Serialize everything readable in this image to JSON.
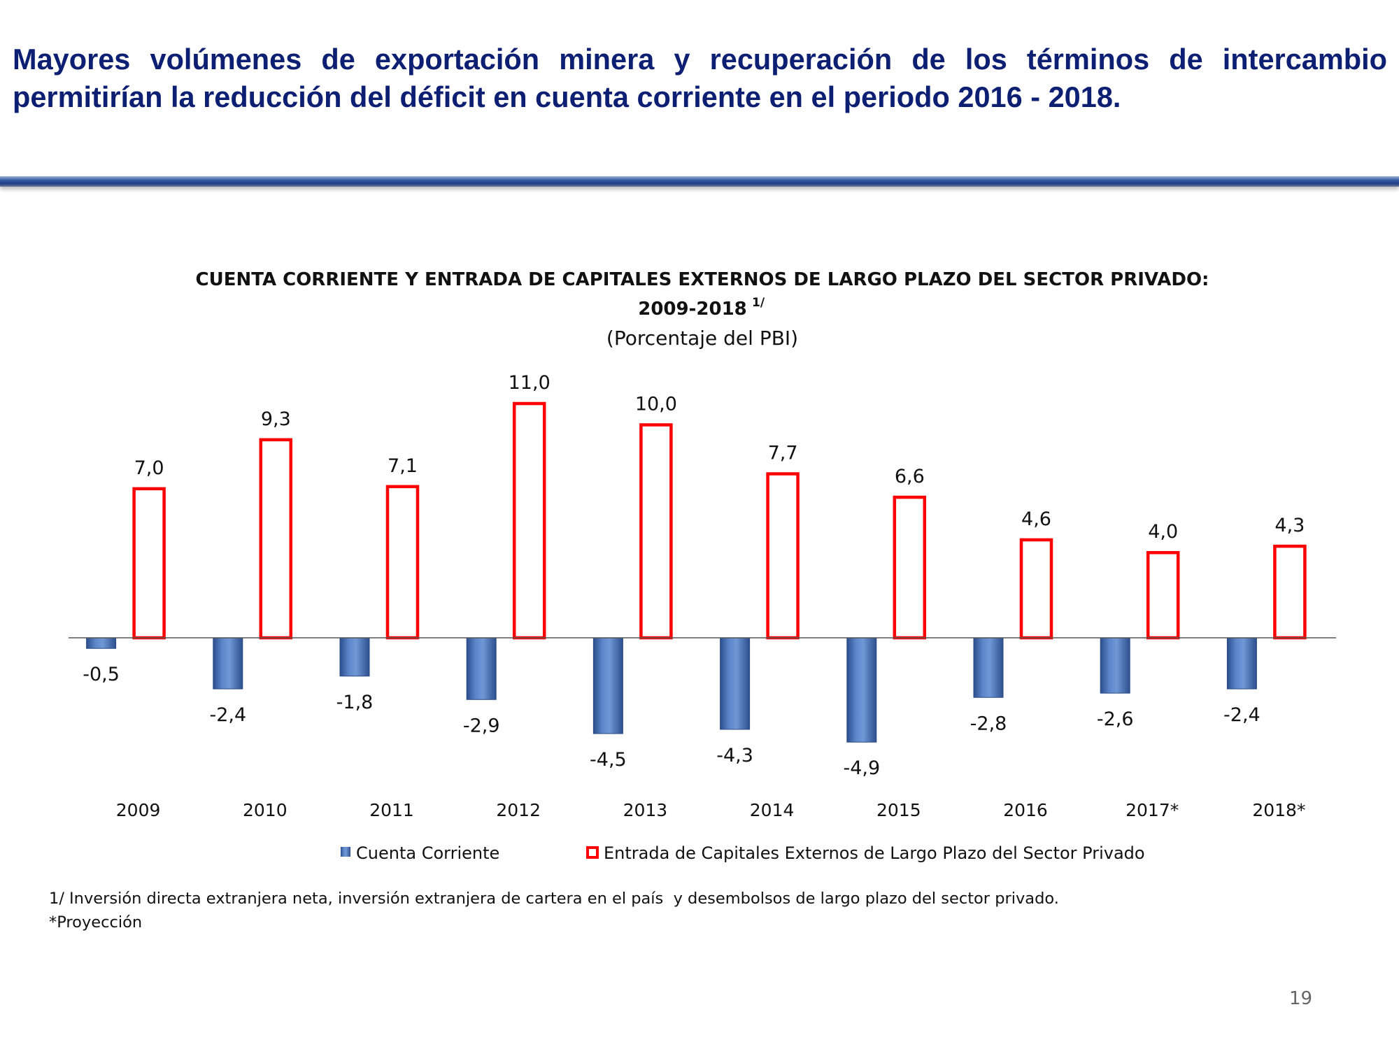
{
  "slide": {
    "heading_line1": "Mayores volúmenes de exportación minera y recuperación de los términos de intercambio",
    "heading_line2": "permitirían la reducción del déficit en cuenta corriente en el periodo 2016 - 2018.",
    "page_number": "19"
  },
  "chart_data": {
    "type": "bar",
    "title_line1": "CUENTA CORRIENTE Y ENTRADA DE CAPITALES EXTERNOS DE LARGO PLAZO DEL SECTOR PRIVADO:",
    "title_line2": "2009-2018",
    "title_superscript": "1/",
    "subtitle": "(Porcentaje del PBI)",
    "categories": [
      "2009",
      "2010",
      "2011",
      "2012",
      "2013",
      "2014",
      "2015",
      "2016",
      "2017*",
      "2018*"
    ],
    "series": [
      {
        "name": "Cuenta Corriente",
        "values": [
          -0.5,
          -2.4,
          -1.8,
          -2.9,
          -4.5,
          -4.3,
          -4.9,
          -2.8,
          -2.6,
          -2.4
        ],
        "labels": [
          "-0,5",
          "-2,4",
          "-1,8",
          "-2,9",
          "-4,5",
          "-4,3",
          "-4,9",
          "-2,8",
          "-2,6",
          "-2,4"
        ],
        "color": "#4a72b5",
        "style": "filled-gradient"
      },
      {
        "name": "Entrada de Capitales Externos de Largo Plazo del Sector Privado",
        "values": [
          7.0,
          9.3,
          7.1,
          11.0,
          10.0,
          7.7,
          6.6,
          4.6,
          4.0,
          4.3
        ],
        "labels": [
          "7,0",
          "9,3",
          "7,1",
          "11,0",
          "10,0",
          "7,7",
          "6,6",
          "4,6",
          "4,0",
          "4,3"
        ],
        "color": "#ff0000",
        "style": "outline"
      }
    ],
    "xlabel": "",
    "ylabel": "",
    "ylim": [
      -5,
      11
    ],
    "grid": false,
    "legend_position": "bottom"
  },
  "footnotes": {
    "note1": "1/ Inversión directa extranjera neta, inversión extranjera de cartera en el país  y desembolsos de largo plazo del sector privado.",
    "note2": "*Proyección"
  }
}
